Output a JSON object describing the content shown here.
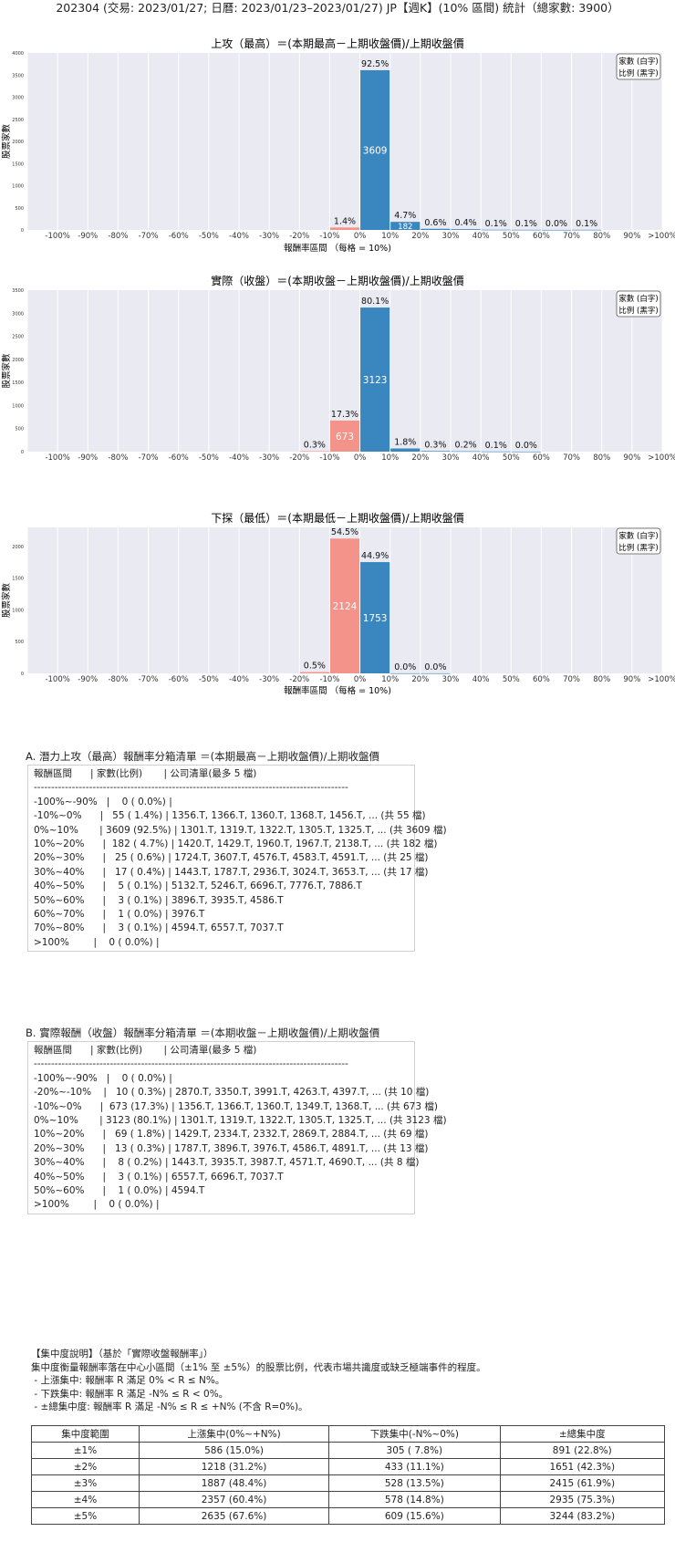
{
  "page_title": "202304 (交易: 2023/01/27; 日曆: 2023/01/23–2023/01/27) JP【週K】(10% 區間) 統計（總家數: 3900）",
  "legend": {
    "line1": "家數 (白字)",
    "line2": "比例 (黑字)"
  },
  "colors": {
    "positive": "#3a87bf",
    "negative": "#f4938a",
    "background": "#eaeaf2"
  },
  "chart_data": [
    {
      "type": "bar",
      "title": "上攻（最高）＝(本期最高－上期收盤價)/上期收盤價",
      "xlabel": "報酬率區間 （每格 = 10%)",
      "ylabel": "股票家數",
      "categories": [
        "-100%",
        "-90%",
        "-80%",
        "-70%",
        "-60%",
        "-50%",
        "-40%",
        "-30%",
        "-20%",
        "-10%",
        "0%",
        "10%",
        "20%",
        "30%",
        "40%",
        "50%",
        "60%",
        "70%",
        "80%",
        "90%",
        ">100%"
      ],
      "yticks": [
        0,
        500,
        1000,
        1500,
        2000,
        2500,
        3000,
        3500,
        4000
      ],
      "ylim": [
        0,
        4000
      ],
      "legend_position": "top-right",
      "bars": [
        {
          "x": -5,
          "count": 55,
          "pct": "1.4%",
          "count_label": ""
        },
        {
          "x": 5,
          "count": 3609,
          "pct": "92.5%",
          "count_label": "3609"
        },
        {
          "x": 15,
          "count": 182,
          "pct": "4.7%",
          "count_label": "182"
        },
        {
          "x": 25,
          "count": 25,
          "pct": "0.6%",
          "count_label": ""
        },
        {
          "x": 35,
          "count": 17,
          "pct": "0.4%",
          "count_label": ""
        },
        {
          "x": 45,
          "count": 5,
          "pct": "0.1%",
          "count_label": ""
        },
        {
          "x": 55,
          "count": 3,
          "pct": "0.1%",
          "count_label": ""
        },
        {
          "x": 65,
          "count": 1,
          "pct": "0.0%",
          "count_label": ""
        },
        {
          "x": 75,
          "count": 3,
          "pct": "0.1%",
          "count_label": ""
        }
      ]
    },
    {
      "type": "bar",
      "title": "實際（收盤）＝(本期收盤－上期收盤價)/上期收盤價",
      "xlabel": "",
      "ylabel": "股票家數",
      "categories": [
        "-100%",
        "-90%",
        "-80%",
        "-70%",
        "-60%",
        "-50%",
        "-40%",
        "-30%",
        "-20%",
        "-10%",
        "0%",
        "10%",
        "20%",
        "30%",
        "40%",
        "50%",
        "60%",
        "70%",
        "80%",
        "90%",
        ">100%"
      ],
      "yticks": [
        0,
        500,
        1000,
        1500,
        2000,
        2500,
        3000,
        3500
      ],
      "ylim": [
        0,
        3500
      ],
      "legend_position": "top-right",
      "bars": [
        {
          "x": -15,
          "count": 10,
          "pct": "0.3%",
          "count_label": ""
        },
        {
          "x": -5,
          "count": 673,
          "pct": "17.3%",
          "count_label": "673"
        },
        {
          "x": 5,
          "count": 3123,
          "pct": "80.1%",
          "count_label": "3123"
        },
        {
          "x": 15,
          "count": 69,
          "pct": "1.8%",
          "count_label": ""
        },
        {
          "x": 25,
          "count": 13,
          "pct": "0.3%",
          "count_label": ""
        },
        {
          "x": 35,
          "count": 8,
          "pct": "0.2%",
          "count_label": ""
        },
        {
          "x": 45,
          "count": 3,
          "pct": "0.1%",
          "count_label": ""
        },
        {
          "x": 55,
          "count": 1,
          "pct": "0.0%",
          "count_label": ""
        }
      ]
    },
    {
      "type": "bar",
      "title": "下探（最低）＝(本期最低－上期收盤價)/上期收盤價",
      "xlabel": "報酬率區間 （每格 = 10%)",
      "ylabel": "股票家數",
      "categories": [
        "-100%",
        "-90%",
        "-80%",
        "-70%",
        "-60%",
        "-50%",
        "-40%",
        "-30%",
        "-20%",
        "-10%",
        "0%",
        "10%",
        "20%",
        "30%",
        "40%",
        "50%",
        "60%",
        "70%",
        "80%",
        "90%",
        ">100%"
      ],
      "yticks": [
        0,
        500,
        1000,
        1500,
        2000
      ],
      "ylim": [
        0,
        2300
      ],
      "legend_position": "top-right",
      "bars": [
        {
          "x": -15,
          "count": 20,
          "pct": "0.5%",
          "count_label": ""
        },
        {
          "x": -5,
          "count": 2124,
          "pct": "54.5%",
          "count_label": "2124"
        },
        {
          "x": 5,
          "count": 1753,
          "pct": "44.9%",
          "count_label": "1753"
        },
        {
          "x": 15,
          "count": 1,
          "pct": "0.0%",
          "count_label": ""
        },
        {
          "x": 25,
          "count": 1,
          "pct": "0.0%",
          "count_label": ""
        }
      ]
    }
  ],
  "section_a": {
    "title": "A. 潛力上攻（最高）報酬率分箱清單 ＝(本期最高－上期收盤價)/上期收盤價",
    "lines": [
      "報酬區間      | 家數(比例)       | 公司清單(最多 5 檔)",
      "-------------------------------------------------------------------------------------------",
      "-100%~-90%   |    0 ( 0.0%) |",
      "-10%~0%      |   55 ( 1.4%) | 1356.T, 1366.T, 1360.T, 1368.T, 1456.T, ... (共 55 檔)",
      "0%~10%       | 3609 (92.5%) | 1301.T, 1319.T, 1322.T, 1305.T, 1325.T, ... (共 3609 檔)",
      "10%~20%      |  182 ( 4.7%) | 1420.T, 1429.T, 1960.T, 1967.T, 2138.T, ... (共 182 檔)",
      "20%~30%      |   25 ( 0.6%) | 1724.T, 3607.T, 4576.T, 4583.T, 4591.T, ... (共 25 檔)",
      "30%~40%      |   17 ( 0.4%) | 1443.T, 1787.T, 2936.T, 3024.T, 3653.T, ... (共 17 檔)",
      "40%~50%      |    5 ( 0.1%) | 5132.T, 5246.T, 6696.T, 7776.T, 7886.T",
      "50%~60%      |    3 ( 0.1%) | 3896.T, 3935.T, 4586.T",
      "60%~70%      |    1 ( 0.0%) | 3976.T",
      "70%~80%      |    3 ( 0.1%) | 4594.T, 6557.T, 7037.T",
      ">100%        |    0 ( 0.0%) |"
    ]
  },
  "section_b": {
    "title": "B. 實際報酬（收盤）報酬率分箱清單 ＝(本期收盤－上期收盤價)/上期收盤價",
    "lines": [
      "報酬區間      | 家數(比例)       | 公司清單(最多 5 檔)",
      "-------------------------------------------------------------------------------------------",
      "-100%~-90%   |    0 ( 0.0%) |",
      "-20%~-10%    |   10 ( 0.3%) | 2870.T, 3350.T, 3991.T, 4263.T, 4397.T, ... (共 10 檔)",
      "-10%~0%      |  673 (17.3%) | 1356.T, 1366.T, 1360.T, 1349.T, 1368.T, ... (共 673 檔)",
      "0%~10%       | 3123 (80.1%) | 1301.T, 1319.T, 1322.T, 1305.T, 1325.T, ... (共 3123 檔)",
      "10%~20%      |   69 ( 1.8%) | 1429.T, 2334.T, 2332.T, 2869.T, 2884.T, ... (共 69 檔)",
      "20%~30%      |   13 ( 0.3%) | 1787.T, 3896.T, 3976.T, 4586.T, 4891.T, ... (共 13 檔)",
      "30%~40%      |    8 ( 0.2%) | 1443.T, 3935.T, 3987.T, 4571.T, 4690.T, ... (共 8 檔)",
      "40%~50%      |    3 ( 0.1%) | 6557.T, 6696.T, 7037.T",
      "50%~60%      |    1 ( 0.0%) | 4594.T",
      ">100%        |    0 ( 0.0%) |"
    ]
  },
  "explanation": {
    "lines": [
      "【集中度說明】（基於「實際收盤報酬率」）",
      "集中度衡量報酬率落在中心小區間（±1% 至 ±5%）的股票比例，代表市場共識度或缺乏極端事件的程度。",
      " - 上漲集中: 報酬率 R 滿足 0% < R ≤ N%。",
      " - 下跌集中: 報酬率 R 滿足 -N% ≤ R < 0%。",
      " - ±總集中度: 報酬率 R 滿足 -N% ≤ R ≤ +N% (不含 R=0%)。"
    ]
  },
  "concentration_table": {
    "headers": [
      "集中度範圍",
      "上漲集中(0%~+N%)",
      "下跌集中(-N%~0%)",
      "±總集中度"
    ],
    "rows": [
      [
        "±1%",
        "586 (15.0%)",
        "305 ( 7.8%)",
        "891 (22.8%)"
      ],
      [
        "±2%",
        "1218 (31.2%)",
        "433 (11.1%)",
        "1651 (42.3%)"
      ],
      [
        "±3%",
        "1887 (48.4%)",
        "528 (13.5%)",
        "2415 (61.9%)"
      ],
      [
        "±4%",
        "2357 (60.4%)",
        "578 (14.8%)",
        "2935 (75.3%)"
      ],
      [
        "±5%",
        "2635 (67.6%)",
        "609 (15.6%)",
        "3244 (83.2%)"
      ]
    ]
  }
}
